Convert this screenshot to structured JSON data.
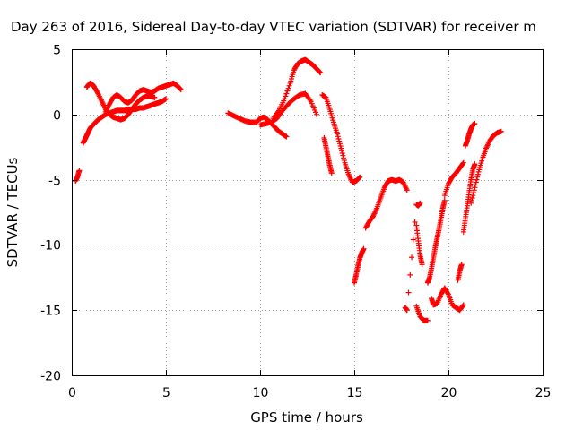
{
  "chart_data": {
    "type": "scatter",
    "title": "Day 263 of 2016, Sidereal Day-to-day VTEC variation (SDTVAR) for receiver m",
    "xlabel": "GPS time / hours",
    "ylabel": "SDTVAR / TECUs",
    "xlim": [
      0,
      25
    ],
    "ylim": [
      -20,
      5
    ],
    "xticks": [
      0,
      5,
      10,
      15,
      20,
      25
    ],
    "yticks": [
      -20,
      -15,
      -10,
      -5,
      0,
      5
    ],
    "grid": true,
    "marker": "+",
    "colors": {
      "series": "#ff0000",
      "axes": "#000000",
      "grid": "#a0a0a0"
    },
    "series": [
      {
        "x": [
          0.2,
          0.3,
          0.4
        ],
        "y": [
          -5.1,
          -4.8,
          -4.3
        ]
      },
      {
        "x": [
          0.6,
          0.7,
          0.8,
          0.9,
          1.0,
          1.2,
          1.4,
          1.6,
          1.8,
          2.0,
          2.2,
          2.4,
          2.6,
          2.8,
          3.0,
          3.2,
          3.4,
          3.6,
          3.8,
          4.0,
          4.2,
          4.4,
          4.6,
          4.8,
          5.0
        ],
        "y": [
          -2.2,
          -1.9,
          -1.6,
          -1.3,
          -1.0,
          -0.7,
          -0.4,
          -0.2,
          0.0,
          0.1,
          0.2,
          0.3,
          0.3,
          0.3,
          0.4,
          0.4,
          0.4,
          0.5,
          0.5,
          0.6,
          0.7,
          0.8,
          0.9,
          1.0,
          1.2
        ]
      },
      {
        "x": [
          0.8,
          0.9,
          1.0,
          1.1,
          1.2,
          1.4,
          1.6,
          1.8,
          2.0,
          2.2,
          2.4,
          2.6,
          2.8,
          3.0,
          3.2,
          3.4,
          3.6,
          3.8,
          4.0,
          4.2,
          4.4
        ],
        "y": [
          2.1,
          2.3,
          2.4,
          2.3,
          2.1,
          1.6,
          1.0,
          0.4,
          0.0,
          -0.2,
          -0.3,
          -0.4,
          -0.3,
          0.0,
          0.4,
          0.8,
          1.1,
          1.3,
          1.4,
          1.4,
          1.3
        ]
      },
      {
        "x": [
          1.8,
          2.0,
          2.2,
          2.4,
          2.6,
          2.8,
          3.0,
          3.2,
          3.4,
          3.6,
          3.8,
          4.0,
          4.2,
          4.4,
          4.6,
          4.8,
          5.0,
          5.2,
          5.4,
          5.6,
          5.8
        ],
        "y": [
          0.2,
          0.8,
          1.3,
          1.5,
          1.3,
          1.0,
          0.9,
          1.1,
          1.5,
          1.8,
          1.9,
          1.8,
          1.7,
          1.8,
          2.0,
          2.1,
          2.2,
          2.3,
          2.4,
          2.2,
          1.9
        ]
      },
      {
        "x": [
          8.3,
          8.6,
          8.9,
          9.2,
          9.5,
          9.8,
          10.0,
          10.2,
          10.4,
          10.6,
          10.8,
          11.0,
          11.2,
          11.4
        ],
        "y": [
          0.1,
          -0.1,
          -0.3,
          -0.5,
          -0.6,
          -0.6,
          -0.3,
          -0.2,
          -0.4,
          -0.7,
          -1.0,
          -1.3,
          -1.5,
          -1.7
        ]
      },
      {
        "x": [
          10.0,
          10.3,
          10.6,
          10.9,
          11.2,
          11.5,
          11.8,
          12.1,
          12.4,
          12.7,
          13.0
        ],
        "y": [
          -0.8,
          -0.7,
          -0.6,
          -0.3,
          0.3,
          0.8,
          1.2,
          1.5,
          1.6,
          1.0,
          0.0
        ]
      },
      {
        "x": [
          10.7,
          11.0,
          11.3,
          11.6,
          11.8,
          12.0,
          12.2,
          12.4,
          12.6,
          12.8,
          13.0,
          13.2
        ],
        "y": [
          -0.3,
          0.3,
          1.2,
          2.4,
          3.4,
          3.9,
          4.1,
          4.2,
          4.0,
          3.8,
          3.5,
          3.2
        ]
      },
      {
        "x": [
          13.3,
          13.5,
          13.7,
          13.9,
          14.1,
          14.3,
          14.5,
          14.7,
          14.9,
          15.1,
          15.3
        ],
        "y": [
          1.5,
          1.3,
          0.4,
          -0.6,
          -1.5,
          -2.6,
          -3.7,
          -4.6,
          -5.2,
          -5.1,
          -4.8
        ]
      },
      {
        "x": [
          13.4,
          13.5,
          13.6,
          13.7,
          13.8
        ],
        "y": [
          -1.8,
          -2.5,
          -3.2,
          -3.9,
          -4.5
        ]
      },
      {
        "x": [
          15.0,
          15.1,
          15.2,
          15.3,
          15.4,
          15.5
        ],
        "y": [
          -12.9,
          -12.3,
          -11.6,
          -11.0,
          -10.6,
          -10.3
        ]
      },
      {
        "x": [
          15.6,
          15.8,
          16.0,
          16.2,
          16.4,
          16.6,
          16.8,
          17.0,
          17.2,
          17.4,
          17.6,
          17.8
        ],
        "y": [
          -8.7,
          -8.2,
          -7.8,
          -7.2,
          -6.4,
          -5.6,
          -5.1,
          -5.0,
          -5.1,
          -5.0,
          -5.2,
          -5.8
        ]
      },
      {
        "x": [
          17.7,
          17.8,
          18.3,
          18.4,
          18.5
        ],
        "y": [
          -14.8,
          -15.0,
          -6.9,
          -7.0,
          -6.8
        ]
      },
      {
        "x": [
          18.3,
          18.4,
          18.5,
          18.6
        ],
        "y": [
          -8.5,
          -9.7,
          -10.8,
          -11.5
        ]
      },
      {
        "x": [
          18.3,
          18.5,
          18.7,
          18.9
        ],
        "y": [
          -14.7,
          -15.5,
          -15.8,
          -15.8
        ]
      },
      {
        "x": [
          18.9,
          19.0,
          19.1,
          19.2,
          19.3,
          19.4,
          19.5,
          19.6,
          19.7,
          19.8
        ],
        "y": [
          -12.9,
          -12.5,
          -11.8,
          -11.0,
          -10.2,
          -9.5,
          -8.8,
          -8.0,
          -7.2,
          -6.6
        ]
      },
      {
        "x": [
          19.1,
          19.2,
          19.4,
          19.6,
          19.8,
          20.0,
          20.2,
          20.4,
          20.6,
          20.8
        ],
        "y": [
          -14.1,
          -14.6,
          -14.5,
          -13.8,
          -13.3,
          -13.8,
          -14.6,
          -14.8,
          -15.0,
          -14.6
        ]
      },
      {
        "x": [
          19.8,
          20.0,
          20.2,
          20.4,
          20.6,
          20.8
        ],
        "y": [
          -6.2,
          -5.3,
          -4.8,
          -4.5,
          -4.1,
          -3.7
        ]
      },
      {
        "x": [
          20.5,
          20.6,
          20.7
        ],
        "y": [
          -12.7,
          -12.0,
          -11.5
        ]
      },
      {
        "x": [
          20.8,
          20.9,
          21.0,
          21.1,
          21.2,
          21.3,
          21.4
        ],
        "y": [
          -9.0,
          -8.0,
          -7.0,
          -6.0,
          -5.0,
          -4.2,
          -3.8
        ]
      },
      {
        "x": [
          20.9,
          21.0,
          21.1,
          21.2,
          21.3,
          21.4
        ],
        "y": [
          -2.4,
          -2.0,
          -1.5,
          -1.1,
          -0.8,
          -0.7
        ]
      },
      {
        "x": [
          21.2,
          21.4,
          21.6,
          21.8,
          22.0,
          22.2,
          22.4,
          22.6,
          22.8
        ],
        "y": [
          -6.8,
          -5.6,
          -4.4,
          -3.4,
          -2.6,
          -2.0,
          -1.6,
          -1.4,
          -1.3
        ]
      }
    ]
  }
}
